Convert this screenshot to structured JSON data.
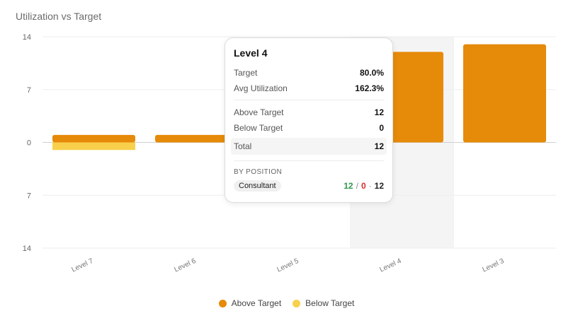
{
  "chart_data": {
    "type": "bar",
    "title": "Utilization vs Target",
    "categories": [
      "Level 7",
      "Level 6",
      "Level 5",
      "Level 4",
      "Level 3"
    ],
    "series": [
      {
        "name": "Above Target",
        "color": "#e68a0a",
        "values": [
          1,
          1,
          0,
          12,
          13
        ]
      },
      {
        "name": "Below Target",
        "color": "#f8d04c",
        "values": [
          1,
          0,
          0,
          0,
          0
        ]
      }
    ],
    "below_direction": "negative",
    "y_ticks": [
      "14",
      "7",
      "0",
      "7",
      "14"
    ],
    "ylim": [
      -14,
      14
    ],
    "highlighted_category": "Level 4",
    "grid": true,
    "legend_position": "bottom-center"
  },
  "tooltip": {
    "title": "Level 4",
    "target_label": "Target",
    "target_value": "80.0%",
    "avg_label": "Avg Utilization",
    "avg_value": "162.3%",
    "above_label": "Above Target",
    "above_value": "12",
    "below_label": "Below Target",
    "below_value": "0",
    "total_label": "Total",
    "total_value": "12",
    "section_label": "BY POSITION",
    "position_name": "Consultant",
    "position_above": "12",
    "position_sep": "/",
    "position_below": "0",
    "position_dot": "·",
    "position_total": "12"
  },
  "legend": {
    "items": [
      {
        "label": "Above Target",
        "color": "#e68a0a"
      },
      {
        "label": "Below Target",
        "color": "#f8d04c"
      }
    ]
  }
}
